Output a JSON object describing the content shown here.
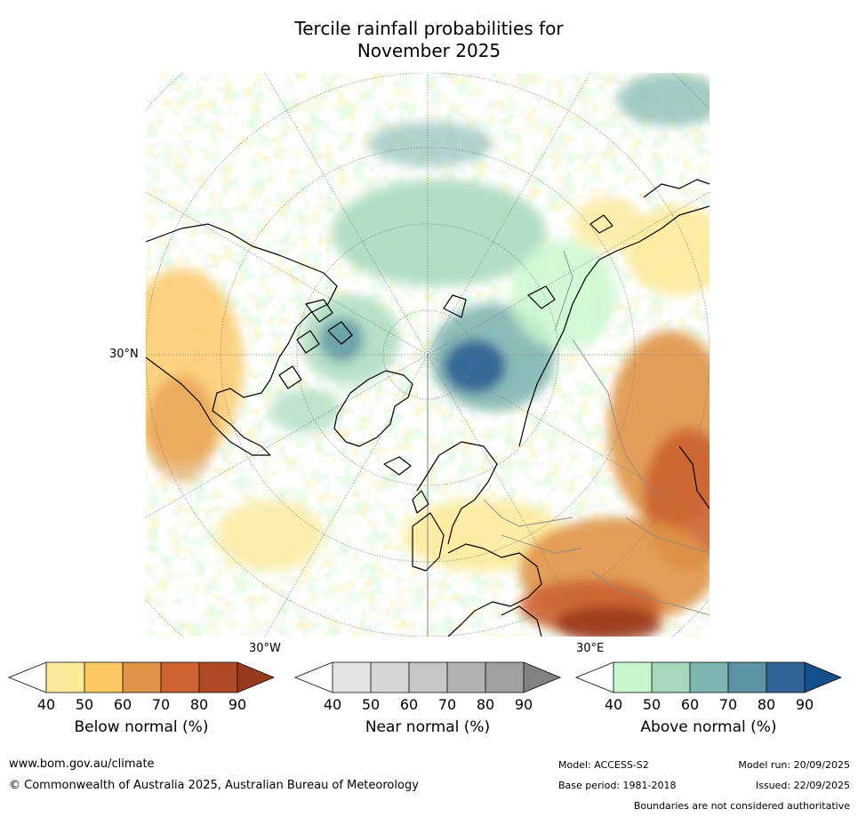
{
  "title": {
    "line1": "Tercile rainfall probabilities for",
    "line2": "November 2025"
  },
  "map": {
    "lat_label": "30°N",
    "lon_labels": [
      "30°W",
      "30°E"
    ]
  },
  "colorbars": [
    {
      "title": "Below normal (%)",
      "ticks": [
        "40",
        "50",
        "60",
        "70",
        "80",
        "90"
      ],
      "colors": [
        "#ffffff",
        "#fdea9b",
        "#fdc764",
        "#e09448",
        "#cc6330",
        "#b04a25",
        "#9a3a1c"
      ]
    },
    {
      "title": "Near normal (%)",
      "ticks": [
        "40",
        "50",
        "60",
        "70",
        "80",
        "90"
      ],
      "colors": [
        "#ffffff",
        "#e4e4e4",
        "#d6d6d6",
        "#c6c6c6",
        "#b2b2b2",
        "#a0a0a0",
        "#828282"
      ]
    },
    {
      "title": "Above normal (%)",
      "ticks": [
        "40",
        "50",
        "60",
        "70",
        "80",
        "90"
      ],
      "colors": [
        "#ffffff",
        "#c8f7cd",
        "#a6d8bc",
        "#7fb5b1",
        "#5a93a3",
        "#306497",
        "#134f8c"
      ]
    }
  ],
  "footer": {
    "website": "www.bom.gov.au/climate",
    "copyright": "© Commonwealth of Australia 2025, Australian Bureau of Meteorology",
    "model": "Model: ACCESS-S2",
    "model_run": "Model run: 20/09/2025",
    "base_period": "Base period: 1981-2018",
    "issued": "Issued: 22/09/2025",
    "disclaimer": "Boundaries are not considered authoritative"
  }
}
